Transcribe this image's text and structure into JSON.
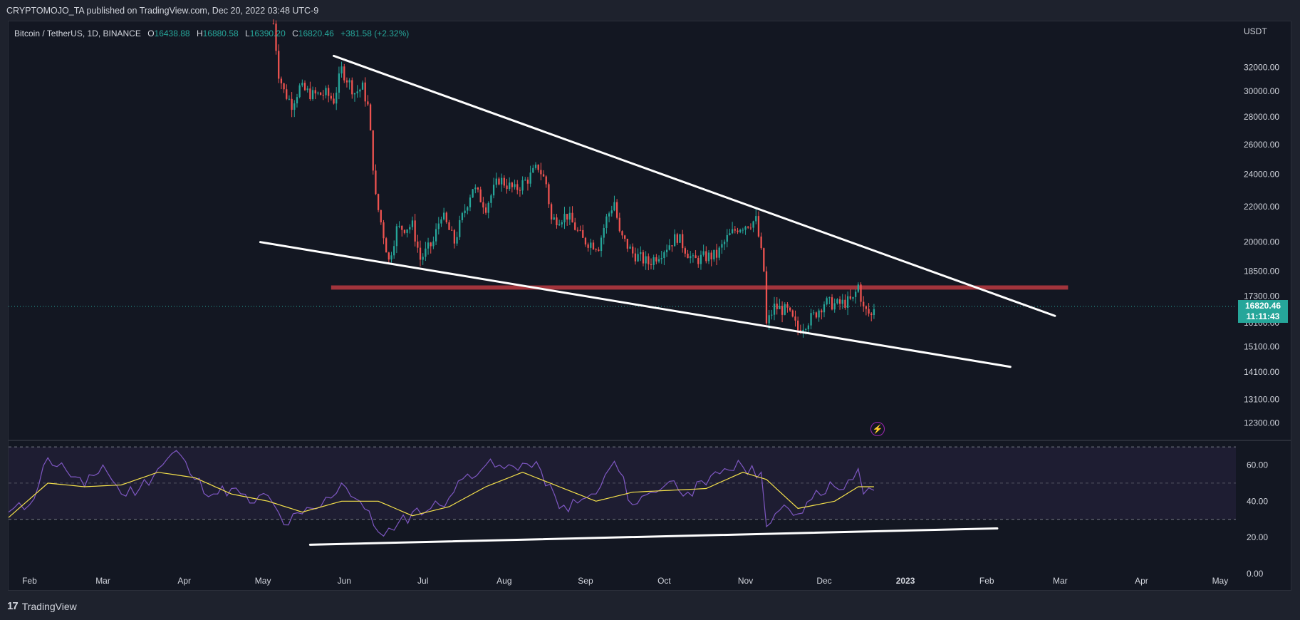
{
  "header": {
    "published_text": "CRYPTOMOJO_TA published on TradingView.com, Dec 20, 2022 03:48 UTC-9"
  },
  "symbol": {
    "name": "Bitcoin / TetherUS, 1D, BINANCE",
    "o_label": "O",
    "o_value": "16438.88",
    "h_label": "H",
    "h_value": "16880.58",
    "l_label": "L",
    "l_value": "16390.20",
    "c_label": "C",
    "c_value": "16820.46",
    "change": "+381.58 (+2.32%)"
  },
  "price_label": {
    "price": "16820.46",
    "countdown": "11:11:43"
  },
  "footer": {
    "brand": "TradingView"
  },
  "colors": {
    "up": "#26a69a",
    "down": "#ef5350",
    "rsi": "#7e57c2",
    "rsi_ma": "#f5e14b",
    "trendline": "#ffffff",
    "support_zone": "#b2373f",
    "badge": "#9c27b0"
  },
  "icons": {
    "logo": "tradingview-logo-icon",
    "badge": "lightning-icon"
  },
  "chart_data": [
    {
      "type": "candlestick",
      "title": "Bitcoin / TetherUS, 1D, BINANCE",
      "currency_label": "USDT",
      "y_scale": "log",
      "ylim": [
        11800,
        36000
      ],
      "y_ticks": [
        "32000.00",
        "30000.00",
        "28000.00",
        "26000.00",
        "24000.00",
        "22000.00",
        "20000.00",
        "18500.00",
        "17300.00",
        "16100.00",
        "15100.00",
        "14100.00",
        "13100.00",
        "12300.00"
      ],
      "x_ticks": [
        "Feb",
        "Mar",
        "Apr",
        "May",
        "Jun",
        "Jul",
        "Aug",
        "Sep",
        "Oct",
        "Nov",
        "Dec",
        "2023",
        "Feb",
        "Mar",
        "Apr",
        "May"
      ],
      "x_range": [
        "2022-01-24",
        "2023-05-07"
      ],
      "last_price": 16820.46,
      "price_path": [
        [
          "2022-05-05",
          36000
        ],
        [
          "2022-05-07",
          31500
        ],
        [
          "2022-05-09",
          30000
        ],
        [
          "2022-05-12",
          29000
        ],
        [
          "2022-05-15",
          30300
        ],
        [
          "2022-05-20",
          29700
        ],
        [
          "2022-05-25",
          29800
        ],
        [
          "2022-05-28",
          29300
        ],
        [
          "2022-05-31",
          31800
        ],
        [
          "2022-06-05",
          29900
        ],
        [
          "2022-06-08",
          30300
        ],
        [
          "2022-06-10",
          28800
        ],
        [
          "2022-06-13",
          22500
        ],
        [
          "2022-06-18",
          19000
        ],
        [
          "2022-06-21",
          20700
        ],
        [
          "2022-06-27",
          20900
        ],
        [
          "2022-06-30",
          19100
        ],
        [
          "2022-07-05",
          20000
        ],
        [
          "2022-07-08",
          21600
        ],
        [
          "2022-07-13",
          20000
        ],
        [
          "2022-07-20",
          23200
        ],
        [
          "2022-07-25",
          22000
        ],
        [
          "2022-07-30",
          23700
        ],
        [
          "2022-08-05",
          23000
        ],
        [
          "2022-08-10",
          23700
        ],
        [
          "2022-08-14",
          24500
        ],
        [
          "2022-08-17",
          23400
        ],
        [
          "2022-08-19",
          21200
        ],
        [
          "2022-08-25",
          21500
        ],
        [
          "2022-08-31",
          20100
        ],
        [
          "2022-09-06",
          19800
        ],
        [
          "2022-09-09",
          21300
        ],
        [
          "2022-09-12",
          22300
        ],
        [
          "2022-09-14",
          20400
        ],
        [
          "2022-09-19",
          19400
        ],
        [
          "2022-09-25",
          18900
        ],
        [
          "2022-09-30",
          19500
        ],
        [
          "2022-10-06",
          20300
        ],
        [
          "2022-10-12",
          19000
        ],
        [
          "2022-10-16",
          19200
        ],
        [
          "2022-10-21",
          19300
        ],
        [
          "2022-10-25",
          20200
        ],
        [
          "2022-10-29",
          20800
        ],
        [
          "2022-11-05",
          21200
        ],
        [
          "2022-11-08",
          18500
        ],
        [
          "2022-11-09",
          16000
        ],
        [
          "2022-11-12",
          16800
        ],
        [
          "2022-11-17",
          16600
        ],
        [
          "2022-11-21",
          15800
        ],
        [
          "2022-11-27",
          16400
        ],
        [
          "2022-12-01",
          17000
        ],
        [
          "2022-12-06",
          16900
        ],
        [
          "2022-12-12",
          17100
        ],
        [
          "2022-12-14",
          17800
        ],
        [
          "2022-12-16",
          16700
        ],
        [
          "2022-12-19",
          16400
        ],
        [
          "2022-12-20",
          16820
        ]
      ],
      "annotations": [
        {
          "type": "trendline",
          "label": "upper trendline",
          "from": [
            "2022-05-28",
            33000
          ],
          "to": [
            "2023-02-27",
            16400
          ]
        },
        {
          "type": "trendline",
          "label": "lower trendline",
          "from": [
            "2022-04-30",
            20000
          ],
          "to": [
            "2023-02-10",
            14300
          ]
        },
        {
          "type": "zone",
          "label": "support/resistance zone",
          "from": "2022-05-27",
          "to": "2023-03-04",
          "price_low": 17600,
          "price_high": 17800
        }
      ]
    },
    {
      "type": "line",
      "title": "RSI",
      "ylim": [
        0,
        72
      ],
      "y_ticks": [
        "60.00",
        "40.00",
        "20.00",
        "0.00"
      ],
      "band": [
        30,
        70
      ],
      "midline": 50,
      "series": [
        {
          "role": "rsi",
          "values": [
            [
              "2022-01-24",
              34
            ],
            [
              "2022-02-01",
              38
            ],
            [
              "2022-02-08",
              64
            ],
            [
              "2022-02-15",
              57
            ],
            [
              "2022-02-22",
              48
            ],
            [
              "2022-03-01",
              60
            ],
            [
              "2022-03-08",
              44
            ],
            [
              "2022-03-15",
              47
            ],
            [
              "2022-03-22",
              58
            ],
            [
              "2022-03-29",
              68
            ],
            [
              "2022-04-05",
              52
            ],
            [
              "2022-04-12",
              44
            ],
            [
              "2022-04-19",
              47
            ],
            [
              "2022-04-26",
              39
            ],
            [
              "2022-05-03",
              43
            ],
            [
              "2022-05-09",
              27
            ],
            [
              "2022-05-16",
              33
            ],
            [
              "2022-05-23",
              37
            ],
            [
              "2022-05-31",
              50
            ],
            [
              "2022-06-07",
              40
            ],
            [
              "2022-06-14",
              23
            ],
            [
              "2022-06-20",
              24
            ],
            [
              "2022-06-27",
              34
            ],
            [
              "2022-07-04",
              36
            ],
            [
              "2022-07-11",
              42
            ],
            [
              "2022-07-18",
              55
            ],
            [
              "2022-07-25",
              60
            ],
            [
              "2022-08-01",
              58
            ],
            [
              "2022-08-08",
              61
            ],
            [
              "2022-08-15",
              57
            ],
            [
              "2022-08-22",
              36
            ],
            [
              "2022-08-29",
              39
            ],
            [
              "2022-09-05",
              44
            ],
            [
              "2022-09-12",
              62
            ],
            [
              "2022-09-19",
              38
            ],
            [
              "2022-09-26",
              45
            ],
            [
              "2022-10-03",
              51
            ],
            [
              "2022-10-10",
              45
            ],
            [
              "2022-10-17",
              49
            ],
            [
              "2022-10-24",
              58
            ],
            [
              "2022-10-31",
              59
            ],
            [
              "2022-11-07",
              56
            ],
            [
              "2022-11-09",
              26
            ],
            [
              "2022-11-14",
              35
            ],
            [
              "2022-11-21",
              33
            ],
            [
              "2022-11-28",
              46
            ],
            [
              "2022-12-05",
              48
            ],
            [
              "2022-12-12",
              52
            ],
            [
              "2022-12-14",
              58
            ],
            [
              "2022-12-16",
              44
            ],
            [
              "2022-12-20",
              46
            ]
          ]
        },
        {
          "role": "rsi_ma",
          "values": [
            [
              "2022-01-24",
              31
            ],
            [
              "2022-02-08",
              50
            ],
            [
              "2022-02-22",
              48
            ],
            [
              "2022-03-08",
              49
            ],
            [
              "2022-03-22",
              56
            ],
            [
              "2022-04-05",
              53
            ],
            [
              "2022-04-19",
              44
            ],
            [
              "2022-05-03",
              40
            ],
            [
              "2022-05-16",
              34
            ],
            [
              "2022-05-31",
              40
            ],
            [
              "2022-06-14",
              40
            ],
            [
              "2022-06-27",
              32
            ],
            [
              "2022-07-11",
              37
            ],
            [
              "2022-07-25",
              48
            ],
            [
              "2022-08-08",
              56
            ],
            [
              "2022-08-22",
              48
            ],
            [
              "2022-09-05",
              40
            ],
            [
              "2022-09-19",
              45
            ],
            [
              "2022-10-03",
              46
            ],
            [
              "2022-10-17",
              47
            ],
            [
              "2022-10-31",
              56
            ],
            [
              "2022-11-09",
              52
            ],
            [
              "2022-11-21",
              36
            ],
            [
              "2022-12-05",
              40
            ],
            [
              "2022-12-14",
              48
            ],
            [
              "2022-12-20",
              48
            ]
          ]
        }
      ],
      "annotations": [
        {
          "type": "trendline",
          "label": "RSI support trendline",
          "from": [
            "2022-05-19",
            16
          ],
          "to": [
            "2023-02-05",
            25
          ]
        }
      ]
    }
  ]
}
